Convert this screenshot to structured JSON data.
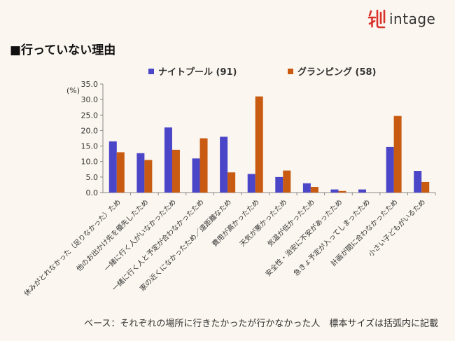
{
  "brand": {
    "name": "intage",
    "accent": "#d9322b"
  },
  "page_title": "■行っていない理由",
  "footnote": "ベース：それぞれの場所に行きたかったが行かなかった人　標本サイズは括弧内に記載",
  "chart_data": {
    "type": "bar",
    "unit_label": "(%)",
    "ylim": [
      0,
      35
    ],
    "yticks": [
      "0.0",
      "5.0",
      "10.0",
      "15.0",
      "20.0",
      "25.0",
      "30.0",
      "35.0"
    ],
    "grid": false,
    "legend_position": "top",
    "categories": [
      "休みがとれなかった（足りなかった）ため",
      "他のお出かけ先を優先したため",
      "一緒に行く人がいなかったため",
      "一緒に行く人と予定が合わなかったため",
      "家の近くになかったため／遠距離なため",
      "費用が高かったため",
      "天気が悪かったため",
      "気温が低かったため",
      "安全性・治安に不安があったため",
      "急きょ予定が入ってしまったため",
      "計画が間に合わなかったため",
      "小さい子どもがいるため"
    ],
    "series": [
      {
        "name": "ナイトプール (91)",
        "color": "#4b45c8",
        "values": [
          16.5,
          12.7,
          21.0,
          11.0,
          18.0,
          6.0,
          5.0,
          3.0,
          1.0,
          1.0,
          14.7,
          7.0
        ]
      },
      {
        "name": "グランピング (58)",
        "color": "#c85a12",
        "values": [
          13.0,
          10.5,
          13.8,
          17.5,
          6.5,
          31.0,
          7.1,
          1.8,
          0.5,
          0.0,
          24.7,
          3.4
        ]
      }
    ]
  }
}
